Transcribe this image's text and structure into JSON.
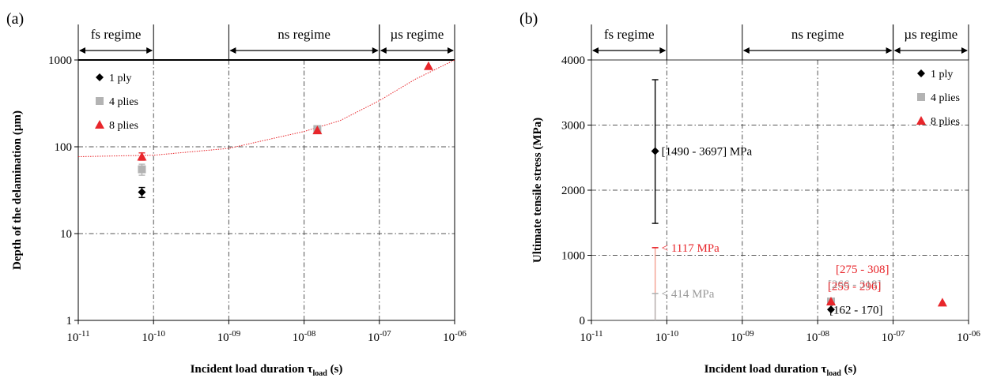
{
  "chart_data": [
    {
      "panel_label": "(a)",
      "type": "scatter",
      "x_scale": "log",
      "y_scale": "log",
      "xlim": [
        1e-11,
        1e-06
      ],
      "ylim": [
        1,
        1000
      ],
      "x_ticks": [
        "10-11",
        "10-10",
        "10-09",
        "10-08",
        "10-07",
        "10-06"
      ],
      "y_ticks": [
        "1",
        "10",
        "100",
        "1000"
      ],
      "ylabel": "Depth of the delamination (µm)",
      "xlabel": "Incident load duration τ",
      "xlabel_sub": "load",
      "xlabel_unit": " (s)",
      "regimes": [
        {
          "label": "fs regime",
          "from": 1e-11,
          "to": 1e-10
        },
        {
          "label": "ns regime",
          "from": 1e-09,
          "to": 1e-07
        },
        {
          "label": "µs regime",
          "from": 1e-07,
          "to": 1e-06
        }
      ],
      "legend_position": "top-left",
      "series": [
        {
          "name": "1 ply",
          "marker": "diamond",
          "color": "#000000",
          "points": [
            {
              "x": 7e-11,
              "y": 30,
              "err": [
                26,
                34
              ]
            }
          ]
        },
        {
          "name": "4 plies",
          "marker": "square",
          "color": "#b3b3b3",
          "points": [
            {
              "x": 7e-11,
              "y": 55,
              "err": [
                47,
                63
              ]
            },
            {
              "x": 1.5e-08,
              "y": 160
            }
          ]
        },
        {
          "name": "8 plies",
          "marker": "triangle",
          "color": "#e8262b",
          "points": [
            {
              "x": 7e-11,
              "y": 77,
              "err": [
                70,
                85
              ]
            },
            {
              "x": 1.5e-08,
              "y": 155
            },
            {
              "x": 4.5e-07,
              "y": 850
            }
          ]
        }
      ],
      "trend": {
        "color": "#e8262b",
        "style": "dotted",
        "points": [
          [
            1e-11,
            77
          ],
          [
            1e-10,
            80
          ],
          [
            1e-09,
            96
          ],
          [
            1e-08,
            150
          ],
          [
            3e-08,
            200
          ],
          [
            1e-07,
            340
          ],
          [
            3e-07,
            600
          ],
          [
            1e-06,
            1000
          ]
        ]
      }
    },
    {
      "panel_label": "(b)",
      "type": "scatter",
      "x_scale": "log",
      "y_scale": "linear",
      "xlim": [
        1e-11,
        1e-06
      ],
      "ylim": [
        0,
        4000
      ],
      "x_ticks": [
        "10-11",
        "10-10",
        "10-09",
        "10-08",
        "10-07",
        "10-06"
      ],
      "y_ticks": [
        "0",
        "1000",
        "2000",
        "3000",
        "4000"
      ],
      "ylabel": "Ultimate tensile stress (MPa)",
      "xlabel": "Incident load duration τ",
      "xlabel_sub": "load",
      "xlabel_unit": " (s)",
      "regimes": [
        {
          "label": "fs regime",
          "from": 1e-11,
          "to": 1e-10
        },
        {
          "label": "ns regime",
          "from": 1e-09,
          "to": 1e-07
        },
        {
          "label": "µs regime",
          "from": 1e-07,
          "to": 1e-06
        }
      ],
      "legend_position": "top-right",
      "series": [
        {
          "name": "1 ply",
          "marker": "diamond",
          "color": "#000000",
          "points": [
            {
              "x": 7e-11,
              "y": 2600,
              "err": [
                1490,
                3697
              ]
            },
            {
              "x": 1.5e-08,
              "y": 166
            }
          ]
        },
        {
          "name": "4 plies",
          "marker": "square",
          "color": "#b3b3b3",
          "points": [
            {
              "x": 1.5e-08,
              "y": 290
            }
          ]
        },
        {
          "name": "8 plies",
          "marker": "triangle",
          "color": "#e8262b",
          "points": [
            {
              "x": 1.5e-08,
              "y": 291
            },
            {
              "x": 4.5e-07,
              "y": 275
            }
          ]
        }
      ],
      "ranges": [
        {
          "x": 7e-11,
          "from": 0,
          "to": 1117,
          "color": "#f4a090",
          "cap_color": "#e8262b"
        },
        {
          "x": 7e-11,
          "from": 0,
          "to": 414,
          "color": "#b3b3b3",
          "cap_color": "#b3b3b3"
        }
      ],
      "annotations": [
        {
          "text": "[1490 - 3697] MPa",
          "x": 7e-11,
          "y": 2600,
          "color": "#000000"
        },
        {
          "text": "< 1117 MPa",
          "x": 7e-11,
          "y": 1117,
          "color": "#e8262b"
        },
        {
          "text": "< 414 MPa",
          "x": 7e-11,
          "y": 414,
          "color": "#999999"
        },
        {
          "text": "[275 - 308]",
          "x": 1.5e-08,
          "y": 291,
          "color": "#e8262b"
        },
        {
          "text": "[266 - 318]",
          "x": 1.5e-08,
          "y": 290,
          "color": "#999999"
        },
        {
          "text": "[162 - 170]",
          "x": 1.5e-08,
          "y": 166,
          "color": "#000000"
        },
        {
          "text": "[255 - 296]",
          "x": 4.5e-07,
          "y": 275,
          "color": "#e8262b"
        }
      ]
    }
  ]
}
